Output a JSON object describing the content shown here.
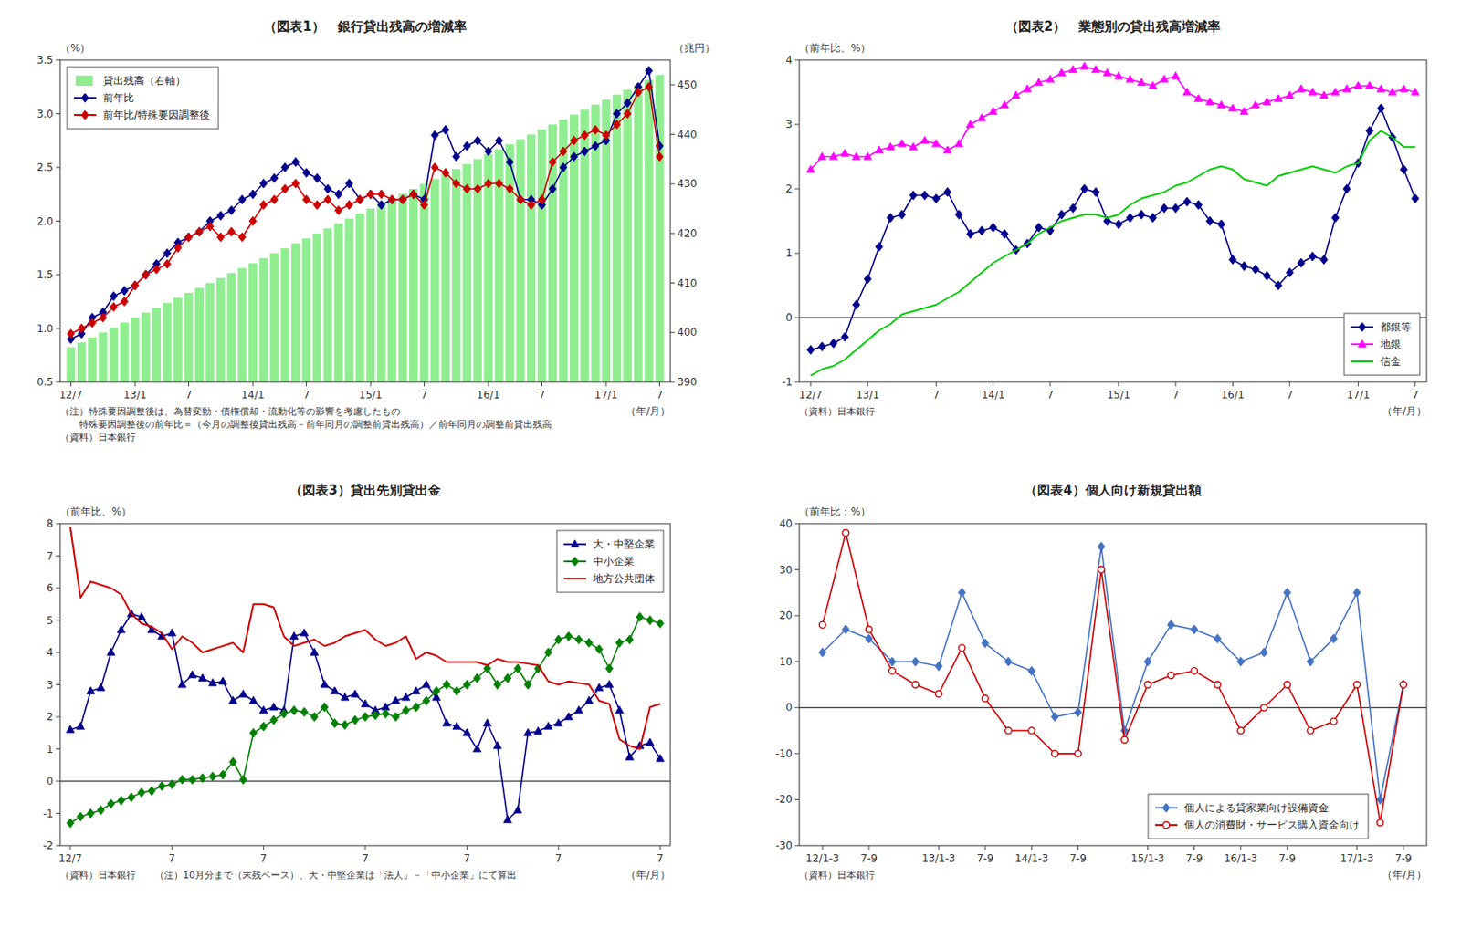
{
  "chart_data": [
    {
      "type": "line",
      "title": "（図表1）　銀行貸出残高の増減率",
      "ylabel": "（%）",
      "y2label": "（兆円）",
      "xlabel": "（年/月）",
      "annotations": [
        "（注）特殊要因調整後は、為替変動・債権償却・流動化等の影響を考慮したもの",
        "　　特殊要因調整後の前年比＝（今月の調整後貸出残高－前年同月の調整前貸出残高）／前年同月の調整前貸出残高",
        "（資料）日本銀行"
      ],
      "categories": [
        "12/7",
        null,
        null,
        null,
        null,
        null,
        "13/1",
        null,
        null,
        null,
        null,
        "7",
        null,
        null,
        null,
        null,
        null,
        "14/1",
        null,
        null,
        null,
        null,
        "7",
        null,
        null,
        null,
        null,
        null,
        "15/1",
        null,
        null,
        null,
        null,
        "7",
        null,
        null,
        null,
        null,
        null,
        "16/1",
        null,
        null,
        null,
        null,
        "7",
        null,
        null,
        null,
        null,
        null,
        "17/1",
        null,
        null,
        null,
        null,
        "7"
      ],
      "series": [
        {
          "name": "貸出残高（右軸）",
          "type": "bar",
          "axis": "y2",
          "color": "#90EE90",
          "values": [
            397,
            398,
            399,
            400,
            401,
            402,
            403,
            404,
            405,
            406,
            407,
            408,
            409,
            410,
            411,
            412,
            413,
            414,
            415,
            416,
            417,
            418,
            419,
            420,
            421,
            422,
            423,
            424,
            425,
            426,
            427,
            428,
            429,
            430,
            431,
            432,
            433,
            434,
            435,
            436,
            437,
            438,
            439,
            440,
            441,
            442,
            443,
            444,
            445,
            446,
            447,
            448,
            449,
            450,
            451,
            452
          ]
        },
        {
          "name": "前年比",
          "type": "line",
          "color": "#00008B",
          "marker": "diamond",
          "values": [
            0.9,
            0.95,
            1.1,
            1.15,
            1.3,
            1.35,
            1.4,
            1.5,
            1.6,
            1.7,
            1.8,
            1.85,
            1.9,
            2.0,
            2.05,
            2.1,
            2.2,
            2.25,
            2.35,
            2.4,
            2.5,
            2.55,
            2.45,
            2.4,
            2.3,
            2.25,
            2.35,
            2.2,
            2.25,
            2.15,
            2.2,
            2.2,
            2.25,
            2.2,
            2.8,
            2.85,
            2.6,
            2.7,
            2.75,
            2.65,
            2.75,
            2.55,
            2.2,
            2.2,
            2.15,
            2.3,
            2.5,
            2.6,
            2.65,
            2.7,
            2.75,
            3.0,
            3.1,
            3.25,
            3.4,
            2.7
          ]
        },
        {
          "name": "前年比/特殊要因調整後",
          "type": "line",
          "color": "#CC0000",
          "marker": "diamond",
          "values": [
            0.95,
            1.0,
            1.05,
            1.1,
            1.2,
            1.25,
            1.4,
            1.5,
            1.55,
            1.6,
            1.75,
            1.85,
            1.9,
            1.95,
            1.85,
            1.9,
            1.85,
            2.0,
            2.15,
            2.2,
            2.3,
            2.35,
            2.2,
            2.15,
            2.2,
            2.1,
            2.15,
            2.2,
            2.25,
            2.25,
            2.2,
            2.2,
            2.25,
            2.15,
            2.5,
            2.45,
            2.35,
            2.3,
            2.3,
            2.35,
            2.35,
            2.3,
            2.2,
            2.15,
            2.2,
            2.55,
            2.65,
            2.75,
            2.8,
            2.85,
            2.8,
            2.9,
            3.0,
            3.2,
            3.25,
            2.6
          ]
        }
      ],
      "ylim": [
        0.5,
        3.5
      ],
      "yticks": [
        0.5,
        {
          "value": 1.0,
          "label": "1.0"
        },
        1.5,
        {
          "value": 2.0,
          "label": "2.0"
        },
        2.5,
        {
          "value": 3.0,
          "label": "3.0"
        },
        3.5
      ],
      "y2lim": [
        390,
        455
      ],
      "y2ticks": [
        390,
        400,
        410,
        420,
        430,
        440,
        450
      ],
      "legend": "upper left",
      "grid": false
    },
    {
      "type": "line",
      "title": "（図表2）　業態別の貸出残高増減率",
      "ylabel": "（前年比、%）",
      "xlabel": "（年/月）",
      "annotations": [
        "（資料）日本銀行"
      ],
      "categories": [
        "12/7",
        null,
        null,
        null,
        null,
        "13/1",
        null,
        null,
        null,
        null,
        null,
        "7",
        null,
        null,
        null,
        null,
        "14/1",
        null,
        null,
        null,
        null,
        "7",
        null,
        null,
        null,
        null,
        null,
        "15/1",
        null,
        null,
        null,
        null,
        "7",
        null,
        null,
        null,
        null,
        "16/1",
        null,
        null,
        null,
        null,
        "7",
        null,
        null,
        null,
        null,
        null,
        "17/1",
        null,
        null,
        null,
        null,
        "7"
      ],
      "series": [
        {
          "name": "都銀等",
          "type": "line",
          "color": "#00008B",
          "marker": "diamond",
          "values": [
            -0.5,
            -0.45,
            -0.4,
            -0.3,
            0.2,
            0.6,
            1.1,
            1.55,
            1.6,
            1.9,
            1.9,
            1.85,
            1.95,
            1.6,
            1.3,
            1.35,
            1.4,
            1.3,
            1.05,
            1.15,
            1.4,
            1.35,
            1.6,
            1.7,
            2.0,
            1.95,
            1.5,
            1.45,
            1.55,
            1.6,
            1.55,
            1.7,
            1.7,
            1.8,
            1.75,
            1.5,
            1.45,
            0.9,
            0.8,
            0.75,
            0.65,
            0.5,
            0.7,
            0.85,
            0.95,
            0.9,
            1.55,
            2.0,
            2.4,
            2.9,
            3.25,
            2.8,
            2.3,
            1.85
          ]
        },
        {
          "name": "地銀",
          "type": "line",
          "color": "#FF00FF",
          "marker": "triangle",
          "values": [
            2.3,
            2.5,
            2.5,
            2.55,
            2.5,
            2.5,
            2.6,
            2.65,
            2.7,
            2.65,
            2.75,
            2.7,
            2.6,
            2.7,
            3.0,
            3.1,
            3.2,
            3.3,
            3.45,
            3.55,
            3.65,
            3.7,
            3.8,
            3.85,
            3.9,
            3.85,
            3.8,
            3.75,
            3.7,
            3.65,
            3.6,
            3.7,
            3.75,
            3.5,
            3.4,
            3.35,
            3.3,
            3.25,
            3.2,
            3.3,
            3.35,
            3.4,
            3.45,
            3.55,
            3.5,
            3.45,
            3.5,
            3.55,
            3.6,
            3.6,
            3.55,
            3.5,
            3.55,
            3.5
          ]
        },
        {
          "name": "信金",
          "type": "line",
          "color": "#00CC00",
          "values": [
            -0.9,
            -0.8,
            -0.75,
            -0.65,
            -0.5,
            -0.35,
            -0.2,
            -0.1,
            0.05,
            0.1,
            0.15,
            0.2,
            0.3,
            0.4,
            0.55,
            0.7,
            0.85,
            0.95,
            1.05,
            1.15,
            1.3,
            1.4,
            1.5,
            1.55,
            1.6,
            1.6,
            1.55,
            1.6,
            1.75,
            1.85,
            1.9,
            1.95,
            2.05,
            2.1,
            2.2,
            2.3,
            2.35,
            2.3,
            2.15,
            2.1,
            2.05,
            2.2,
            2.25,
            2.3,
            2.35,
            2.3,
            2.25,
            2.35,
            2.4,
            2.75,
            2.9,
            2.8,
            2.65,
            2.65
          ]
        }
      ],
      "ylim": [
        -1,
        4
      ],
      "yticks": [
        -1,
        0,
        1,
        2,
        3,
        4
      ],
      "legend": "lower right",
      "grid": false
    },
    {
      "type": "line",
      "title": "（図表3）貸出先別貸出金",
      "ylabel": "（前年比、%）",
      "xlabel": "（年/月）",
      "annotations": [
        "（資料）日本銀行　　（注）10月分まで（末残ベース）、大・中堅企業は「法人」－「中小企業」にて算出"
      ],
      "categories": [
        "12/7",
        null,
        null,
        null,
        null,
        null,
        null,
        null,
        null,
        null,
        "7",
        null,
        null,
        null,
        null,
        null,
        null,
        null,
        null,
        "7",
        null,
        null,
        null,
        null,
        null,
        null,
        null,
        null,
        null,
        "7",
        null,
        null,
        null,
        null,
        null,
        null,
        null,
        null,
        null,
        "7",
        null,
        null,
        null,
        null,
        null,
        null,
        null,
        null,
        "7",
        null,
        null,
        null,
        null,
        null,
        null,
        null,
        null,
        null,
        "7"
      ],
      "series": [
        {
          "name": "大・中堅企業",
          "type": "line",
          "color": "#00008B",
          "marker": "triangle",
          "values": [
            1.6,
            1.7,
            2.8,
            2.9,
            4.0,
            4.7,
            5.2,
            5.1,
            4.7,
            4.5,
            4.6,
            3.0,
            3.3,
            3.2,
            3.05,
            3.1,
            2.5,
            2.7,
            2.5,
            2.2,
            2.3,
            2.2,
            4.5,
            4.6,
            4.0,
            3.0,
            2.8,
            2.6,
            2.7,
            2.4,
            2.2,
            2.3,
            2.5,
            2.6,
            2.8,
            3.0,
            2.6,
            1.8,
            1.7,
            1.5,
            1.0,
            1.8,
            1.1,
            -1.2,
            -0.9,
            1.5,
            1.55,
            1.7,
            1.8,
            2.0,
            2.2,
            2.5,
            2.9,
            3.0,
            2.2,
            0.75,
            1.1,
            1.2,
            0.7
          ]
        },
        {
          "name": "中小企業",
          "type": "line",
          "color": "#008000",
          "marker": "diamond",
          "values": [
            -1.3,
            -1.1,
            -1.0,
            -0.9,
            -0.7,
            -0.6,
            -0.5,
            -0.35,
            -0.3,
            -0.15,
            -0.1,
            0.05,
            0.05,
            0.1,
            0.15,
            0.2,
            0.6,
            0.05,
            1.5,
            1.7,
            1.9,
            2.1,
            2.2,
            2.15,
            2.0,
            2.3,
            1.8,
            1.75,
            1.9,
            2.0,
            2.05,
            2.1,
            2.0,
            2.2,
            2.3,
            2.5,
            2.8,
            3.0,
            2.8,
            3.0,
            3.2,
            3.5,
            3.0,
            3.2,
            3.5,
            3.0,
            3.5,
            4.0,
            4.4,
            4.5,
            4.4,
            4.3,
            4.1,
            3.5,
            4.3,
            4.4,
            5.1,
            5.0,
            4.9
          ]
        },
        {
          "name": "地方公共団体",
          "type": "line",
          "color": "#CC0000",
          "values": [
            7.9,
            5.7,
            6.2,
            6.1,
            6.0,
            5.8,
            5.2,
            4.9,
            4.8,
            4.6,
            4.1,
            4.5,
            4.3,
            4.0,
            4.1,
            4.2,
            4.3,
            4.0,
            5.5,
            5.5,
            5.4,
            4.5,
            4.2,
            4.3,
            4.4,
            4.2,
            4.3,
            4.5,
            4.6,
            4.7,
            4.4,
            4.2,
            4.3,
            4.5,
            3.8,
            4.0,
            3.9,
            3.7,
            3.7,
            3.7,
            3.7,
            3.6,
            3.8,
            3.7,
            3.7,
            3.65,
            3.6,
            3.1,
            3.0,
            3.1,
            3.05,
            3.0,
            2.5,
            2.4,
            1.3,
            1.1,
            1.0,
            2.3,
            2.4
          ]
        }
      ],
      "ylim": [
        -2,
        8
      ],
      "yticks": [
        -2,
        -1,
        0,
        1,
        2,
        3,
        4,
        5,
        6,
        7,
        8
      ],
      "legend": "upper right",
      "grid": false
    },
    {
      "type": "line",
      "title": "（図表4）個人向け新規貸出額",
      "ylabel": "（前年比：%）",
      "xlabel": "（年/月）",
      "annotations": [
        "（資料）日本銀行"
      ],
      "categories": [
        "12/1-3",
        null,
        "7-9",
        null,
        null,
        "13/1-3",
        null,
        "7-9",
        null,
        "14/1-3",
        null,
        "7-9",
        null,
        null,
        "15/1-3",
        null,
        "7-9",
        null,
        "16/1-3",
        null,
        "7-9",
        null,
        null,
        "17/1-3",
        null,
        "7-9"
      ],
      "series": [
        {
          "name": "個人による貸家業向け設備資金",
          "type": "line",
          "color": "#4472C4",
          "marker": "diamond",
          "values": [
            12,
            17,
            15,
            10,
            10,
            9,
            25,
            14,
            10,
            8,
            -2,
            -1,
            35,
            -5,
            10,
            18,
            17,
            15,
            10,
            12,
            25,
            10,
            15,
            25,
            -20,
            5
          ]
        },
        {
          "name": "個人の消費財・サービス購入資金向け",
          "type": "line",
          "color": "#CC0000",
          "marker": "open-circle",
          "values": [
            18,
            38,
            17,
            8,
            5,
            3,
            13,
            2,
            -5,
            -5,
            -10,
            -10,
            30,
            -7,
            5,
            7,
            8,
            5,
            -5,
            0,
            5,
            -5,
            -3,
            5,
            -25,
            5
          ]
        }
      ],
      "ylim": [
        -30,
        40
      ],
      "yticks": [
        -30,
        -20,
        -10,
        0,
        10,
        20,
        30,
        40
      ],
      "legend": "lower right",
      "grid": false
    }
  ]
}
